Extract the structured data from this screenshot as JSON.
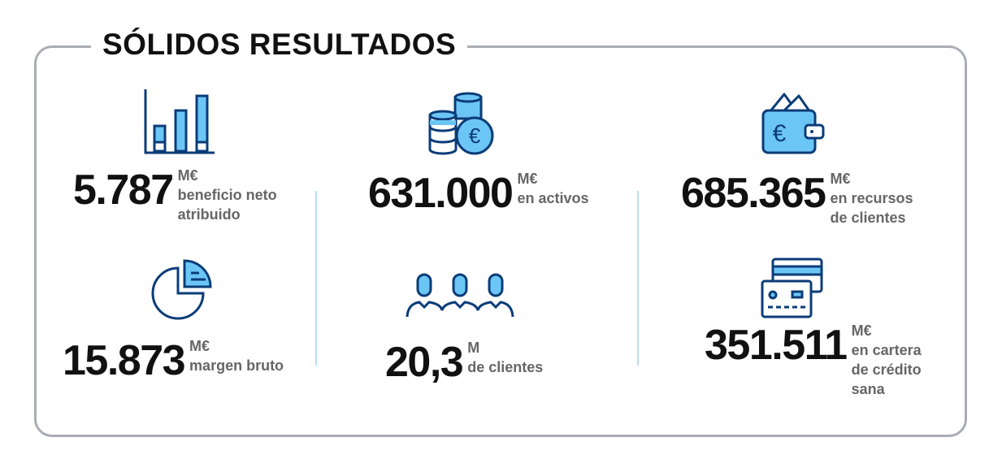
{
  "title": "SÓLIDOS RESULTADOS",
  "colors": {
    "dark_blue": "#0b3c78",
    "light_blue": "#6cc6f5",
    "label_gray": "#666666",
    "frame": "#a9adb5"
  },
  "stats": [
    {
      "icon": "bar-chart-icon",
      "value": "5.787",
      "unit": "M€",
      "label_lines": [
        "beneficio neto",
        "atribuido"
      ]
    },
    {
      "icon": "euro-coins-icon",
      "value": "631.000",
      "unit": "M€",
      "label_lines": [
        "en activos"
      ]
    },
    {
      "icon": "euro-wallet-icon",
      "value": "685.365",
      "unit": "M€",
      "label_lines": [
        "en recursos",
        "de clientes"
      ]
    },
    {
      "icon": "pie-chart-icon",
      "value": "15.873",
      "unit": "M€",
      "label_lines": [
        "margen bruto"
      ]
    },
    {
      "icon": "people-icon",
      "value": "20,3",
      "unit": "M",
      "label_lines": [
        "de clientes"
      ]
    },
    {
      "icon": "credit-cards-icon",
      "value": "351.511",
      "unit": "M€",
      "label_lines": [
        "en cartera",
        "de crédito",
        "sana"
      ]
    }
  ]
}
